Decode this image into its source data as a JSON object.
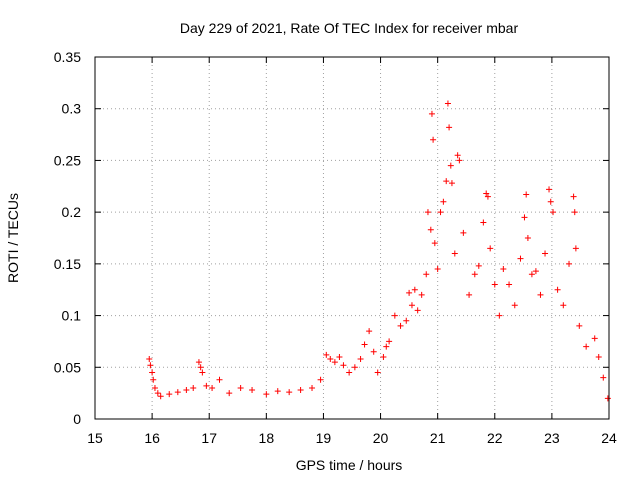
{
  "chart_data": {
    "type": "scatter",
    "title": "Day 229 of 2021, Rate Of TEC Index for receiver mbar",
    "xlabel": "GPS time / hours",
    "ylabel": "ROTI / TECUs",
    "xlim": [
      15,
      24
    ],
    "ylim": [
      0,
      0.35
    ],
    "x_ticks": [
      15,
      16,
      17,
      18,
      19,
      20,
      21,
      22,
      23,
      24
    ],
    "y_ticks": [
      0,
      0.05,
      0.1,
      0.15,
      0.2,
      0.25,
      0.3,
      0.35
    ],
    "x_tick_labels": [
      "15",
      "16",
      "17",
      "18",
      "19",
      "20",
      "21",
      "22",
      "23",
      "24"
    ],
    "y_tick_labels": [
      "0",
      "0.05",
      "0.1",
      "0.15",
      "0.2",
      "0.25",
      "0.3",
      "0.35"
    ],
    "grid": true,
    "marker": "+",
    "color": "#ff0000",
    "series": [
      {
        "name": "ROTI",
        "points": [
          [
            15.95,
            0.058
          ],
          [
            15.97,
            0.052
          ],
          [
            16.0,
            0.045
          ],
          [
            16.02,
            0.038
          ],
          [
            16.05,
            0.03
          ],
          [
            16.1,
            0.025
          ],
          [
            16.15,
            0.022
          ],
          [
            16.3,
            0.024
          ],
          [
            16.45,
            0.026
          ],
          [
            16.6,
            0.028
          ],
          [
            16.72,
            0.03
          ],
          [
            16.82,
            0.055
          ],
          [
            16.85,
            0.05
          ],
          [
            16.88,
            0.045
          ],
          [
            16.95,
            0.032
          ],
          [
            17.05,
            0.03
          ],
          [
            17.18,
            0.038
          ],
          [
            17.35,
            0.025
          ],
          [
            17.55,
            0.03
          ],
          [
            17.75,
            0.028
          ],
          [
            18.0,
            0.024
          ],
          [
            18.2,
            0.027
          ],
          [
            18.4,
            0.026
          ],
          [
            18.6,
            0.028
          ],
          [
            18.8,
            0.03
          ],
          [
            18.95,
            0.038
          ],
          [
            19.05,
            0.062
          ],
          [
            19.12,
            0.058
          ],
          [
            19.2,
            0.055
          ],
          [
            19.28,
            0.06
          ],
          [
            19.35,
            0.052
          ],
          [
            19.45,
            0.045
          ],
          [
            19.55,
            0.05
          ],
          [
            19.65,
            0.058
          ],
          [
            19.72,
            0.072
          ],
          [
            19.8,
            0.085
          ],
          [
            19.88,
            0.065
          ],
          [
            19.95,
            0.045
          ],
          [
            20.05,
            0.06
          ],
          [
            20.1,
            0.07
          ],
          [
            20.15,
            0.075
          ],
          [
            20.25,
            0.1
          ],
          [
            20.35,
            0.09
          ],
          [
            20.45,
            0.095
          ],
          [
            20.5,
            0.122
          ],
          [
            20.55,
            0.11
          ],
          [
            20.6,
            0.125
          ],
          [
            20.65,
            0.105
          ],
          [
            20.72,
            0.12
          ],
          [
            20.8,
            0.14
          ],
          [
            20.83,
            0.2
          ],
          [
            20.88,
            0.183
          ],
          [
            20.9,
            0.295
          ],
          [
            20.92,
            0.27
          ],
          [
            20.95,
            0.17
          ],
          [
            21.0,
            0.145
          ],
          [
            21.05,
            0.2
          ],
          [
            21.1,
            0.21
          ],
          [
            21.15,
            0.23
          ],
          [
            21.18,
            0.305
          ],
          [
            21.2,
            0.282
          ],
          [
            21.23,
            0.245
          ],
          [
            21.25,
            0.228
          ],
          [
            21.3,
            0.16
          ],
          [
            21.35,
            0.255
          ],
          [
            21.38,
            0.25
          ],
          [
            21.45,
            0.18
          ],
          [
            21.55,
            0.12
          ],
          [
            21.65,
            0.14
          ],
          [
            21.72,
            0.148
          ],
          [
            21.8,
            0.19
          ],
          [
            21.85,
            0.218
          ],
          [
            21.88,
            0.215
          ],
          [
            21.92,
            0.165
          ],
          [
            22.0,
            0.13
          ],
          [
            22.08,
            0.1
          ],
          [
            22.15,
            0.145
          ],
          [
            22.25,
            0.13
          ],
          [
            22.35,
            0.11
          ],
          [
            22.45,
            0.155
          ],
          [
            22.52,
            0.195
          ],
          [
            22.55,
            0.217
          ],
          [
            22.58,
            0.175
          ],
          [
            22.65,
            0.14
          ],
          [
            22.72,
            0.143
          ],
          [
            22.8,
            0.12
          ],
          [
            22.88,
            0.16
          ],
          [
            22.95,
            0.222
          ],
          [
            22.98,
            0.21
          ],
          [
            23.02,
            0.2
          ],
          [
            23.1,
            0.125
          ],
          [
            23.2,
            0.11
          ],
          [
            23.3,
            0.15
          ],
          [
            23.38,
            0.215
          ],
          [
            23.4,
            0.2
          ],
          [
            23.42,
            0.165
          ],
          [
            23.48,
            0.09
          ],
          [
            23.6,
            0.07
          ],
          [
            23.75,
            0.078
          ],
          [
            23.82,
            0.06
          ],
          [
            23.9,
            0.04
          ],
          [
            23.98,
            0.02
          ]
        ]
      }
    ]
  }
}
